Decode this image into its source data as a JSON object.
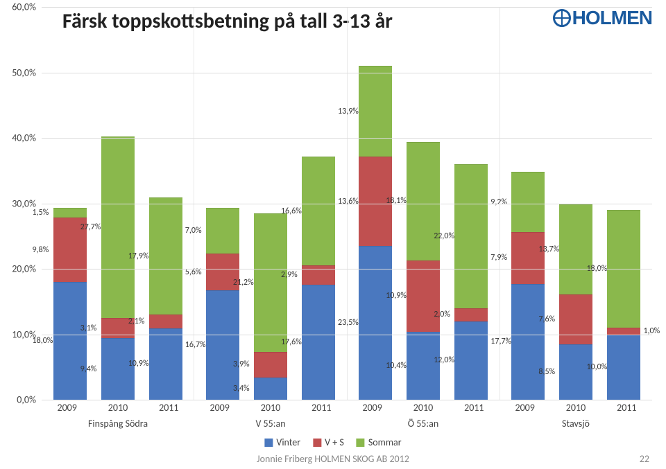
{
  "title": "Färsk toppskottsbetning på tall 3-13 år",
  "logo_text": "HOLMEN",
  "footer": "Jonnie Friberg  HOLMEN SKOG AB 2012",
  "page_number": "22",
  "chart": {
    "type": "stacked-bar",
    "ylabel_format": "percent-comma",
    "yaxis": {
      "min": 0,
      "max": 60,
      "step": 10
    },
    "y_ticks": [
      "0,0%",
      "10,0%",
      "20,0%",
      "30,0%",
      "40,0%",
      "50,0%",
      "60,0%"
    ],
    "background_color": "#ffffff",
    "grid_color": "#dcdcdc",
    "series": [
      {
        "key": "vinter",
        "label": "Vinter",
        "color": "#4a78bf"
      },
      {
        "key": "vs",
        "label": "V + S",
        "color": "#c05050"
      },
      {
        "key": "sommar",
        "label": "Sommar",
        "color": "#8ab84c"
      }
    ],
    "groups": [
      {
        "name": "Finspång Södra",
        "bars": [
          {
            "year": "2009",
            "vinter": 18.0,
            "vs": 9.8,
            "sommar": 1.5,
            "labels": {
              "vinter": "18,0%",
              "vs": "9,8%",
              "sommar": "1,5%"
            }
          },
          {
            "year": "2010",
            "vinter": 9.4,
            "vs": 3.1,
            "sommar": 27.7,
            "labels": {
              "vinter": "9,4%",
              "vs": "3,1%",
              "sommar": "27,7%"
            }
          },
          {
            "year": "2011",
            "vinter": 10.9,
            "vs": 2.1,
            "sommar": 17.9,
            "labels": {
              "vinter": "10,9%",
              "vs": "2,1%",
              "sommar": "17,9%"
            }
          }
        ]
      },
      {
        "name": "V 55:an",
        "bars": [
          {
            "year": "2009",
            "vinter": 16.7,
            "vs": 5.6,
            "sommar": 7.0,
            "labels": {
              "vinter": "16,7%",
              "vs": "5,6%",
              "sommar": "7,0%"
            }
          },
          {
            "year": "2010",
            "vinter": 3.4,
            "vs": 3.9,
            "sommar": 21.2,
            "labels": {
              "vinter": "3,4%",
              "vs": "3,9%",
              "sommar": "21,2%"
            }
          },
          {
            "year": "2011",
            "vinter": 17.6,
            "vs": 2.9,
            "sommar": 16.6,
            "labels": {
              "vinter": "17,6%",
              "vs": "2,9%",
              "sommar": "16,6%"
            }
          }
        ]
      },
      {
        "name": "Ö 55:an",
        "bars": [
          {
            "year": "2009",
            "vinter": 23.5,
            "vs": 13.6,
            "sommar": 13.9,
            "labels": {
              "vinter": "23,5%",
              "vs": "13,6%",
              "sommar": "13,9%"
            }
          },
          {
            "year": "2010",
            "vinter": 10.4,
            "vs": 10.9,
            "sommar": 18.1,
            "labels": {
              "vinter": "10,4%",
              "vs": "10,9%",
              "sommar": "18,1%"
            }
          },
          {
            "year": "2011",
            "vinter": 12.0,
            "vs": 2.0,
            "sommar": 22.0,
            "labels": {
              "vinter": "12,0%",
              "vs": "2,0%",
              "sommar": "22,0%"
            }
          }
        ]
      },
      {
        "name": "Stavsjö",
        "bars": [
          {
            "year": "2009",
            "vinter": 17.7,
            "vs": 7.9,
            "sommar": 9.2,
            "labels": {
              "vinter": "17,7%",
              "vs": "7,9%",
              "sommar": "9,2%"
            }
          },
          {
            "year": "2010",
            "vinter": 8.5,
            "vs": 7.6,
            "sommar": 13.7,
            "labels": {
              "vinter": "8,5%",
              "vs": "7,6%",
              "sommar": "13,7%"
            }
          },
          {
            "year": "2011",
            "vinter": 10.0,
            "vs": 1.0,
            "sommar": 18.0,
            "labels": {
              "vinter": "10,0%",
              "vs": "1,0%",
              "sommar": "18,0%"
            }
          }
        ]
      }
    ]
  },
  "legend_labels": [
    "Vinter",
    "V + S",
    "Sommar"
  ]
}
